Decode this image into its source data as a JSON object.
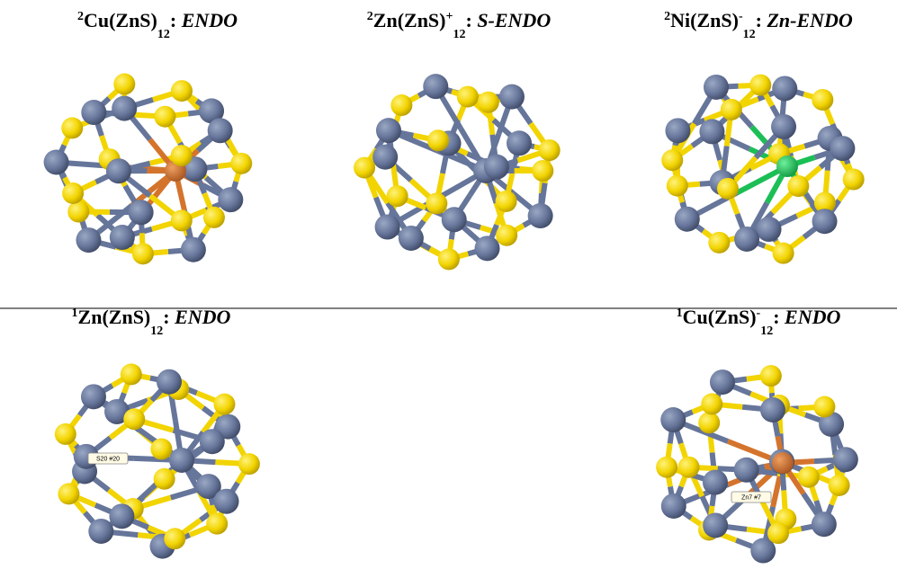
{
  "panels": [
    {
      "title": [
        {
          "text": "2",
          "style": "sup"
        },
        {
          "text": "Cu(ZnS)",
          "style": "normal"
        },
        {
          "text": "12",
          "style": "sub"
        },
        {
          "text": ": ",
          "style": "normal"
        },
        {
          "text": "ENDO",
          "style": "italic"
        }
      ]
    },
    {
      "title": [
        {
          "text": "2",
          "style": "sup"
        },
        {
          "text": "Zn(ZnS)",
          "style": "normal"
        },
        {
          "text": "+",
          "style": "sup"
        },
        {
          "text": "12",
          "style": "sub"
        },
        {
          "text": ": ",
          "style": "normal"
        },
        {
          "text": "S-ENDO",
          "style": "italic"
        }
      ]
    },
    {
      "title": [
        {
          "text": "2",
          "style": "sup"
        },
        {
          "text": "Ni(ZnS)",
          "style": "normal"
        },
        {
          "text": "-",
          "style": "sup"
        },
        {
          "text": "12",
          "style": "sub"
        },
        {
          "text": ": ",
          "style": "normal"
        },
        {
          "text": "Zn-ENDO",
          "style": "italic"
        }
      ]
    },
    {
      "title": [
        {
          "text": "1",
          "style": "sup"
        },
        {
          "text": "Zn(ZnS)",
          "style": "normal"
        },
        {
          "text": "12",
          "style": "sub"
        },
        {
          "text": ": ",
          "style": "normal"
        },
        {
          "text": "ENDO",
          "style": "italic"
        }
      ],
      "atom_label": "S20 #20"
    },
    {
      "title": [
        {
          "text": "1",
          "style": "sup"
        },
        {
          "text": "Cu(ZnS)",
          "style": "normal"
        },
        {
          "text": "-",
          "style": "sup"
        },
        {
          "text": "12",
          "style": "sub"
        },
        {
          "text": ": ",
          "style": "normal"
        },
        {
          "text": "ENDO",
          "style": "italic"
        }
      ],
      "atom_label": "Zn7 #7"
    }
  ]
}
